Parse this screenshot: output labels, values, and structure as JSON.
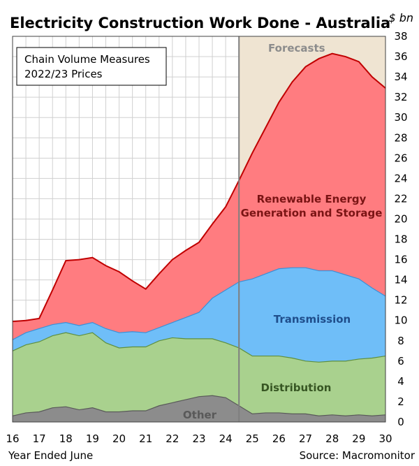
{
  "chart_data": {
    "type": "area",
    "title": "Electricity Construction Work Done - Australia",
    "unit_label": "$ bn",
    "note_line1": "Chain Volume Measures",
    "note_line2": "2022/23 Prices",
    "forecast_label": "Forecasts",
    "forecast_start": 24.5,
    "xlabel": "Year Ended June",
    "source": "Source: Macromonitor",
    "x_ticks": [
      "16",
      "17",
      "18",
      "19",
      "20",
      "21",
      "22",
      "23",
      "24",
      "25",
      "26",
      "27",
      "28",
      "29",
      "30"
    ],
    "y_ticks": [
      "0",
      "2",
      "4",
      "6",
      "8",
      "10",
      "12",
      "14",
      "16",
      "18",
      "20",
      "22",
      "24",
      "26",
      "28",
      "30",
      "32",
      "34",
      "36",
      "38"
    ],
    "xlim": [
      16,
      30
    ],
    "ylim": [
      0,
      38
    ],
    "grid": true,
    "x": [
      16,
      16.5,
      17,
      17.5,
      18,
      18.5,
      19,
      19.5,
      20,
      20.5,
      21,
      21.5,
      22,
      22.5,
      23,
      23.5,
      24,
      24.5,
      25,
      25.5,
      26,
      26.5,
      27,
      27.5,
      28,
      28.5,
      29,
      29.5,
      30
    ],
    "series": [
      {
        "name": "Other",
        "color": "#8c8c8c",
        "values": [
          0.6,
          0.9,
          1.0,
          1.4,
          1.5,
          1.2,
          1.4,
          1.0,
          1.0,
          1.1,
          1.1,
          1.6,
          1.9,
          2.2,
          2.5,
          2.6,
          2.4,
          1.6,
          0.8,
          0.9,
          0.9,
          0.8,
          0.8,
          0.6,
          0.7,
          0.6,
          0.7,
          0.6,
          0.7
        ]
      },
      {
        "name": "Distribution",
        "color": "#a9d18e",
        "values": [
          7.0,
          7.6,
          7.9,
          8.5,
          8.8,
          8.5,
          8.8,
          7.8,
          7.3,
          7.4,
          7.4,
          8.0,
          8.3,
          8.2,
          8.2,
          8.2,
          7.8,
          7.3,
          6.5,
          6.5,
          6.5,
          6.3,
          6.0,
          5.9,
          6.0,
          6.0,
          6.2,
          6.3,
          6.5
        ]
      },
      {
        "name": "Transmission",
        "color": "#6fbef8",
        "values": [
          8.1,
          8.8,
          9.2,
          9.6,
          9.8,
          9.5,
          9.8,
          9.2,
          8.8,
          8.9,
          8.8,
          9.3,
          9.8,
          10.3,
          10.8,
          12.2,
          13.0,
          13.8,
          14.1,
          14.6,
          15.1,
          15.2,
          15.2,
          14.9,
          14.9,
          14.5,
          14.1,
          13.2,
          12.4
        ]
      },
      {
        "name": "Renewable Energy Generation and Storage",
        "color": "#ff7c80",
        "values": [
          9.9,
          10.0,
          10.2,
          13.0,
          15.9,
          16.0,
          16.2,
          15.4,
          14.8,
          13.9,
          13.1,
          14.6,
          16.0,
          16.9,
          17.7,
          19.5,
          21.2,
          23.8,
          26.5,
          29.0,
          31.5,
          33.5,
          35.0,
          35.8,
          36.3,
          36.0,
          35.5,
          34.0,
          32.9
        ]
      }
    ],
    "labels": {
      "other": "Other",
      "distribution": "Distribution",
      "transmission": "Transmission",
      "renewable_line1": "Renewable Energy",
      "renewable_line2": "Generation and Storage"
    }
  }
}
